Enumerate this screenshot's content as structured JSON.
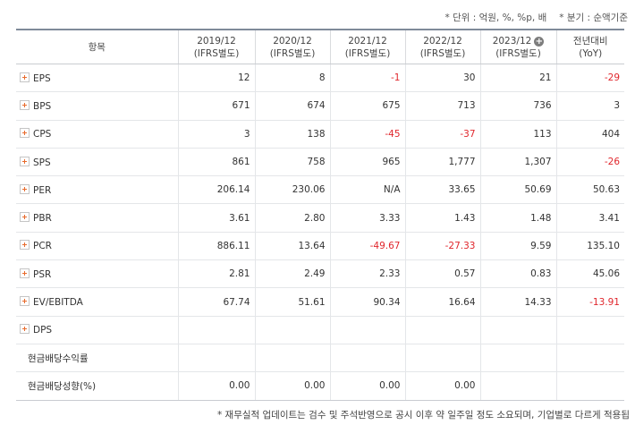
{
  "notes": {
    "unit": "* 단위 : 억원, %, %p, 배",
    "basis": "* 분기 : 순액기준",
    "footnote": "* 재무실적 업데이트는 검수 및 주석반영으로 공시 이후 약 일주일 정도 소요되며, 기업별로 다르게 적용됩"
  },
  "header": {
    "item": "항목",
    "columns": [
      {
        "period": "2019/12",
        "basis": "(IFRS별도)"
      },
      {
        "period": "2020/12",
        "basis": "(IFRS별도)"
      },
      {
        "period": "2021/12",
        "basis": "(IFRS별도)"
      },
      {
        "period": "2022/12",
        "basis": "(IFRS별도)"
      },
      {
        "period": "2023/12",
        "basis": "(IFRS별도)",
        "expand_icon": "plus-circle-icon"
      }
    ],
    "yoy": {
      "line1": "전년대비",
      "line2": "(YoY)"
    }
  },
  "rows": [
    {
      "name": "EPS",
      "expandable": true,
      "values": [
        "12",
        "8",
        "-1",
        "30",
        "21",
        "-29"
      ]
    },
    {
      "name": "BPS",
      "expandable": true,
      "values": [
        "671",
        "674",
        "675",
        "713",
        "736",
        "3"
      ]
    },
    {
      "name": "CPS",
      "expandable": true,
      "values": [
        "3",
        "138",
        "-45",
        "-37",
        "113",
        "404"
      ]
    },
    {
      "name": "SPS",
      "expandable": true,
      "values": [
        "861",
        "758",
        "965",
        "1,777",
        "1,307",
        "-26"
      ]
    },
    {
      "name": "PER",
      "expandable": true,
      "values": [
        "206.14",
        "230.06",
        "N/A",
        "33.65",
        "50.69",
        "50.63"
      ]
    },
    {
      "name": "PBR",
      "expandable": true,
      "values": [
        "3.61",
        "2.80",
        "3.33",
        "1.43",
        "1.48",
        "3.41"
      ]
    },
    {
      "name": "PCR",
      "expandable": true,
      "values": [
        "886.11",
        "13.64",
        "-49.67",
        "-27.33",
        "9.59",
        "135.10"
      ]
    },
    {
      "name": "PSR",
      "expandable": true,
      "values": [
        "2.81",
        "2.49",
        "2.33",
        "0.57",
        "0.83",
        "45.06"
      ]
    },
    {
      "name": "EV/EBITDA",
      "expandable": true,
      "values": [
        "67.74",
        "51.61",
        "90.34",
        "16.64",
        "14.33",
        "-13.91"
      ]
    },
    {
      "name": "DPS",
      "expandable": true,
      "values": [
        "",
        "",
        "",
        "",
        "",
        ""
      ]
    },
    {
      "name": "현금배당수익률",
      "expandable": false,
      "values": [
        "",
        "",
        "",
        "",
        "",
        ""
      ]
    },
    {
      "name": "현금배당성향(%)",
      "expandable": false,
      "values": [
        "0.00",
        "0.00",
        "0.00",
        "0.00",
        "",
        ""
      ]
    }
  ],
  "colors": {
    "negative": "#e0262c",
    "expand_icon": "#e86a2b",
    "header_border": "#7f8a99"
  }
}
